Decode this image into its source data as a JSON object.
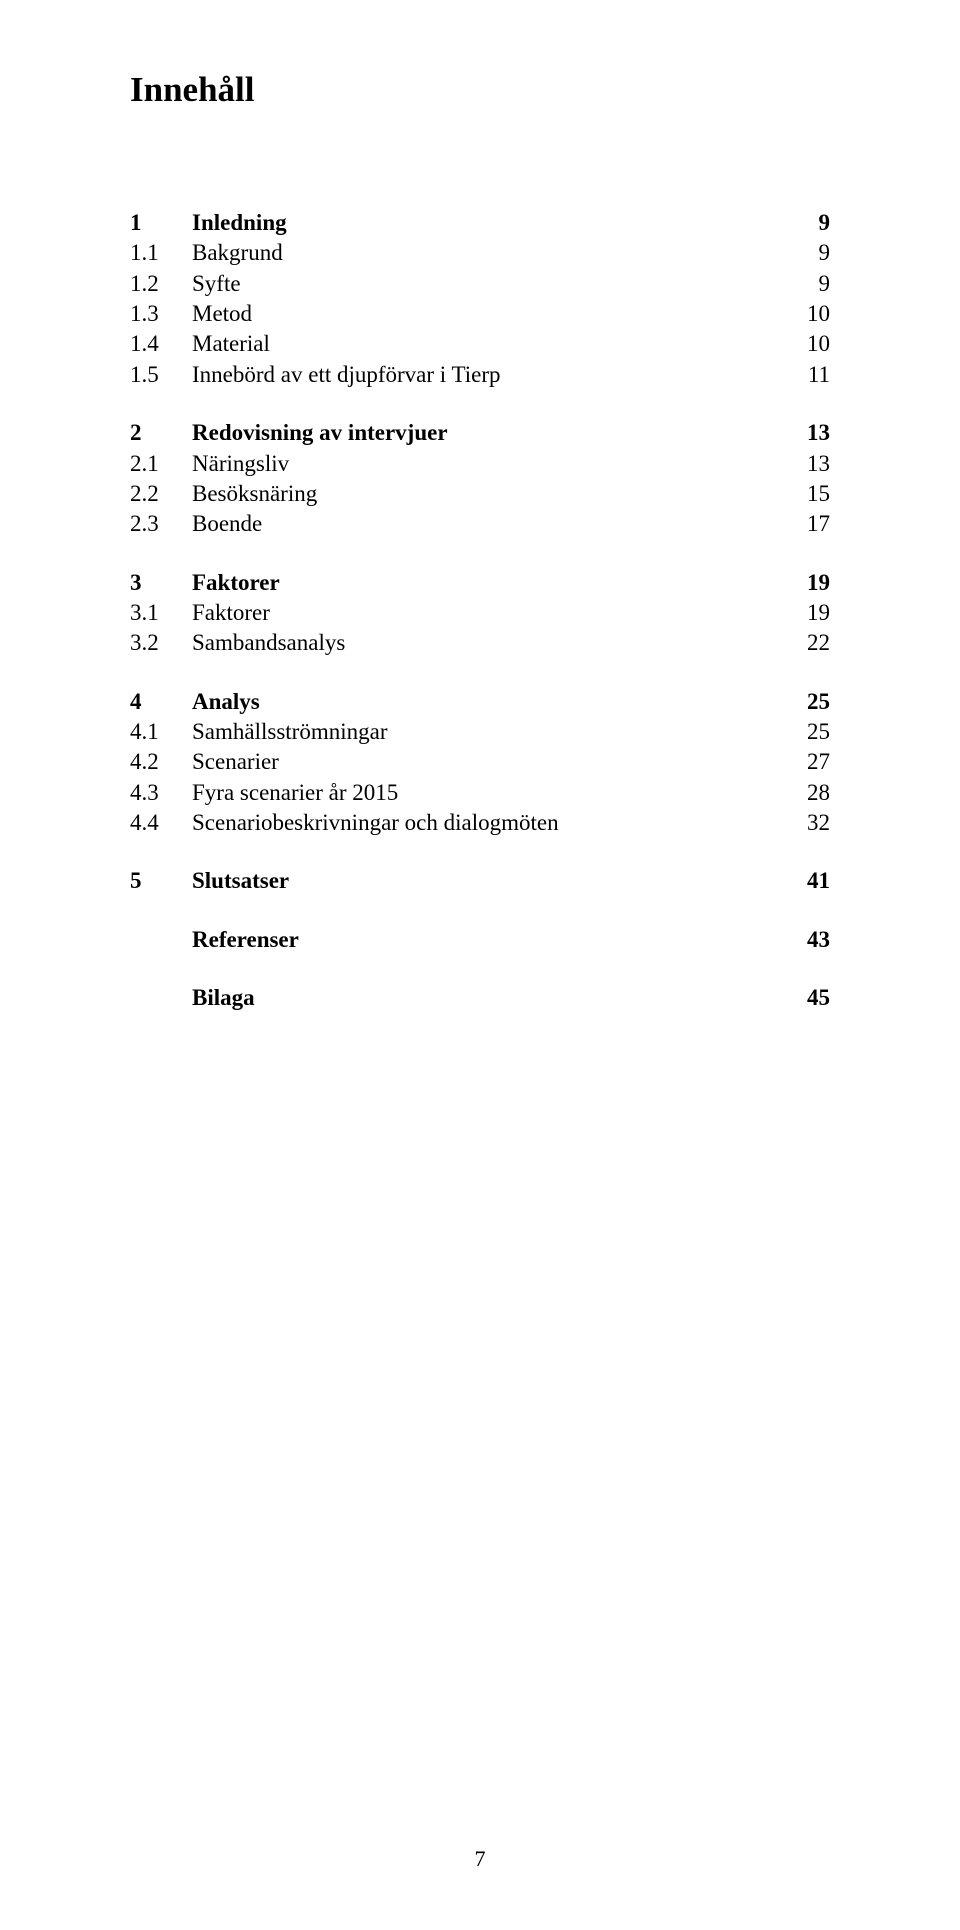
{
  "title": "Innehåll",
  "toc": [
    {
      "section": {
        "num": "1",
        "text": "Inledning",
        "page": "9"
      },
      "subs": [
        {
          "num": "1.1",
          "text": "Bakgrund",
          "page": "9"
        },
        {
          "num": "1.2",
          "text": "Syfte",
          "page": "9"
        },
        {
          "num": "1.3",
          "text": "Metod",
          "page": "10"
        },
        {
          "num": "1.4",
          "text": "Material",
          "page": "10"
        },
        {
          "num": "1.5",
          "text": "Innebörd av ett djupförvar i Tierp",
          "page": "11"
        }
      ]
    },
    {
      "section": {
        "num": "2",
        "text": "Redovisning av intervjuer",
        "page": "13"
      },
      "subs": [
        {
          "num": "2.1",
          "text": "Näringsliv",
          "page": "13"
        },
        {
          "num": "2.2",
          "text": "Besöksnäring",
          "page": "15"
        },
        {
          "num": "2.3",
          "text": "Boende",
          "page": "17"
        }
      ]
    },
    {
      "section": {
        "num": "3",
        "text": "Faktorer",
        "page": "19"
      },
      "subs": [
        {
          "num": "3.1",
          "text": "Faktorer",
          "page": "19"
        },
        {
          "num": "3.2",
          "text": "Sambandsanalys",
          "page": "22"
        }
      ]
    },
    {
      "section": {
        "num": "4",
        "text": "Analys",
        "page": "25"
      },
      "subs": [
        {
          "num": "4.1",
          "text": "Samhällsströmningar",
          "page": "25"
        },
        {
          "num": "4.2",
          "text": "Scenarier",
          "page": "27"
        },
        {
          "num": "4.3",
          "text": "Fyra scenarier år 2015",
          "page": "28"
        },
        {
          "num": "4.4",
          "text": "Scenariobeskrivningar och dialogmöten",
          "page": "32"
        }
      ]
    },
    {
      "section": {
        "num": "5",
        "text": "Slutsatser",
        "page": "41"
      },
      "subs": []
    },
    {
      "section": {
        "num": "",
        "text": "Referenser",
        "page": "43"
      },
      "subs": []
    },
    {
      "section": {
        "num": "",
        "text": "Bilaga",
        "page": "45"
      },
      "subs": []
    }
  ],
  "page_number": "7"
}
